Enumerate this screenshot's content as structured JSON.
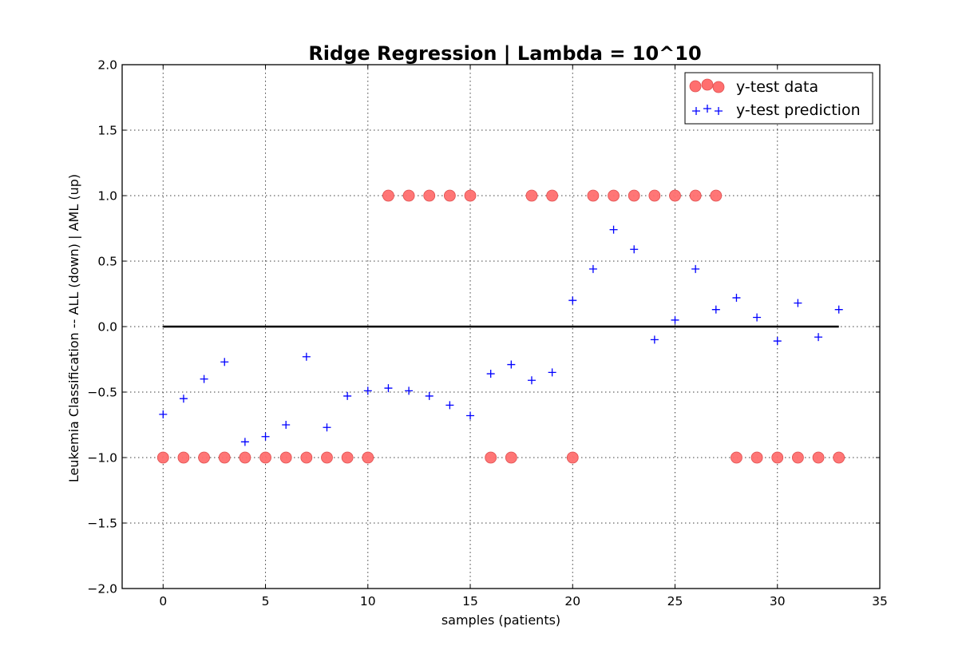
{
  "chart_data": {
    "type": "scatter",
    "title": "Ridge Regression | Lambda = 10^10",
    "xlabel": "samples (patients)",
    "ylabel": "Leukemia Classification -- ALL (down) | AML (up)",
    "xlim": [
      -2,
      35
    ],
    "ylim": [
      -2.0,
      2.0
    ],
    "x_ticks": [
      0,
      5,
      10,
      15,
      20,
      25,
      30,
      35
    ],
    "x_tick_labels": [
      "0",
      "5",
      "10",
      "15",
      "20",
      "25",
      "30",
      "35"
    ],
    "y_ticks": [
      2.0,
      1.5,
      1.0,
      0.5,
      0.0,
      -0.5,
      -1.0,
      -1.5,
      -2.0
    ],
    "y_tick_labels": [
      "2.0",
      "1.5",
      "1.0",
      "0.5",
      "0.0",
      "−0.5",
      "−1.0",
      "−1.5",
      "−2.0"
    ],
    "grid": true,
    "legend_position": "top-right",
    "series": [
      {
        "name": "y-test data",
        "marker": "circle",
        "color": "#ff6f6f",
        "x": [
          0,
          1,
          2,
          3,
          4,
          5,
          6,
          7,
          8,
          9,
          10,
          11,
          12,
          13,
          14,
          15,
          16,
          17,
          18,
          19,
          20,
          21,
          22,
          23,
          24,
          25,
          26,
          27,
          28,
          29,
          30,
          31,
          32,
          33
        ],
        "y": [
          -1,
          -1,
          -1,
          -1,
          -1,
          -1,
          -1,
          -1,
          -1,
          -1,
          -1,
          1,
          1,
          1,
          1,
          1,
          -1,
          -1,
          1,
          1,
          -1,
          1,
          1,
          1,
          1,
          1,
          1,
          1,
          -1,
          -1,
          -1,
          -1,
          -1,
          -1
        ]
      },
      {
        "name": "y-test prediction",
        "marker": "plus",
        "color": "#0000ff",
        "x": [
          0,
          1,
          2,
          3,
          4,
          5,
          6,
          7,
          8,
          9,
          10,
          11,
          12,
          13,
          14,
          15,
          16,
          17,
          18,
          19,
          20,
          21,
          22,
          23,
          24,
          25,
          26,
          27,
          28,
          29,
          30,
          31,
          32,
          33
        ],
        "y": [
          -0.67,
          -0.55,
          -0.4,
          -0.27,
          -0.88,
          -0.84,
          -0.75,
          -0.23,
          -0.77,
          -0.53,
          -0.49,
          -0.47,
          -0.49,
          -0.53,
          -0.6,
          -0.68,
          -0.36,
          -0.29,
          -0.41,
          -0.35,
          0.2,
          0.44,
          0.74,
          0.59,
          -0.1,
          0.05,
          0.44,
          0.13,
          0.22,
          0.07,
          -0.11,
          0.18,
          -0.08,
          0.13
        ]
      }
    ],
    "reference_line": {
      "y": 0.0,
      "x_start": 0,
      "x_end": 33,
      "color": "#000000"
    }
  }
}
